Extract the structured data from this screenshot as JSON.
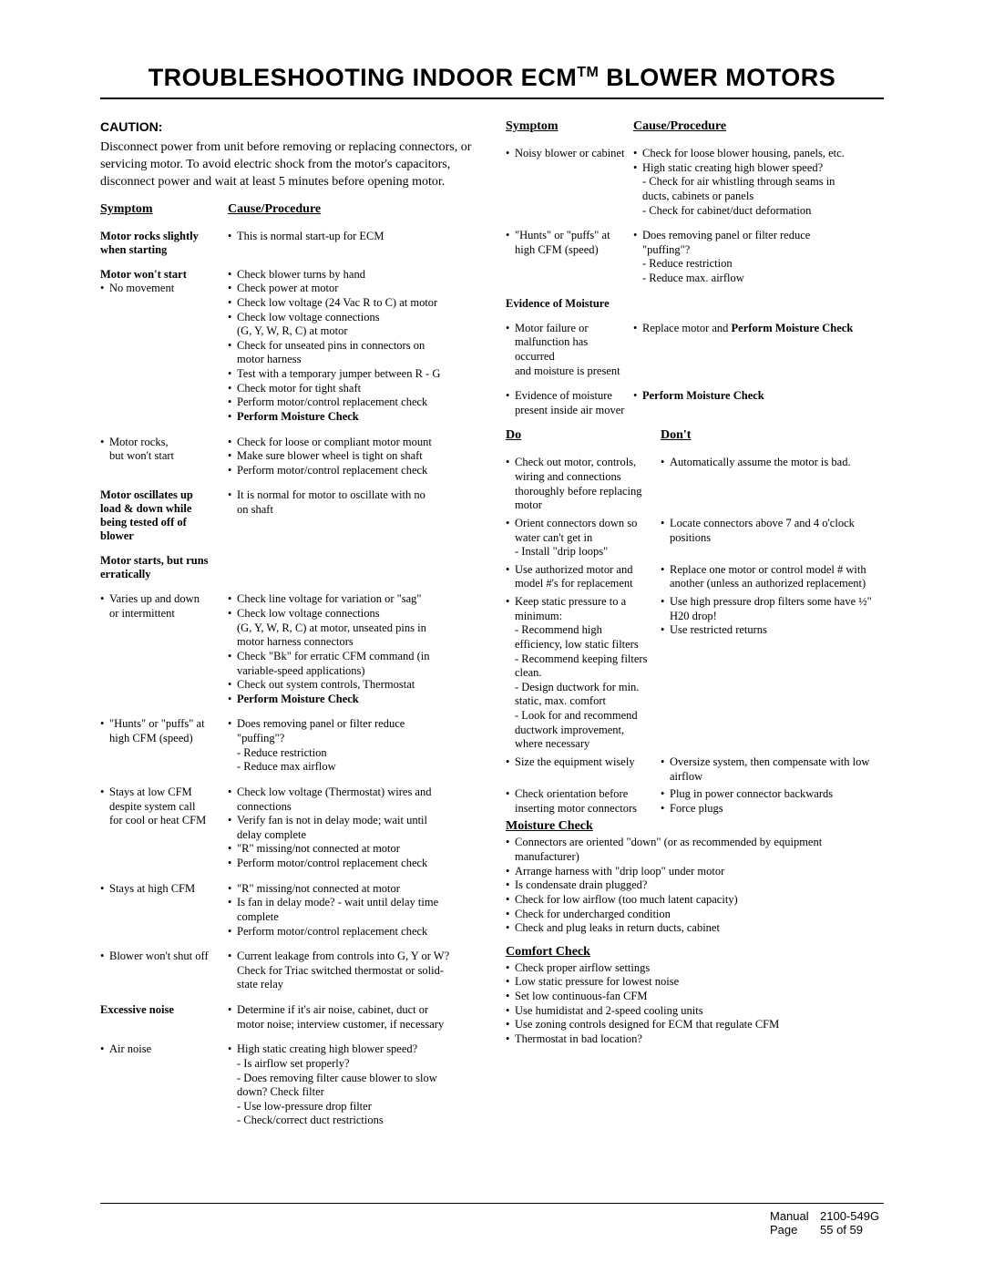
{
  "title_pre": "TROUBLESHOOTING INDOOR ECM",
  "title_sup": "TM",
  "title_post": " BLOWER MOTORS",
  "caution_label": "CAUTION:",
  "caution_body": "Disconnect power from unit before removing or replacing connectors, or servicing motor.  To avoid electric shock from the motor's capacitors, disconnect power and wait at least 5 minutes before opening motor.",
  "hdr_symptom": "Symptom",
  "hdr_cause": "Cause/Procedure",
  "hdr_do": "Do",
  "hdr_dont": "Don't",
  "hdr_moisture": "Moisture Check",
  "hdr_comfort": "Comfort Check",
  "left": [
    {
      "sym_bold": "Motor rocks slightly when starting",
      "proc": [
        "This is normal start-up for ECM"
      ]
    },
    {
      "sym_bold": "Motor won't start",
      "sym_lines": [
        "No movement"
      ],
      "proc": [
        "Check blower turns by hand",
        "Check power at motor",
        "Check low voltage (24 Vac R to C) at motor",
        "Check low voltage connections",
        "_(G, Y, W, R, C) at motor",
        "Check for unseated pins in connectors on",
        "_motor harness",
        "Test with a temporary jumper between R - G",
        "Check motor for tight shaft",
        "Perform motor/control replacement check",
        "**Perform Moisture Check"
      ]
    },
    {
      "sym_lines": [
        "Motor rocks,",
        "_but won't start"
      ],
      "proc": [
        "Check for loose or compliant motor mount",
        "Make sure blower wheel is tight on shaft",
        "Perform motor/control replacement check"
      ]
    },
    {
      "sym_bold": "Motor oscillates up",
      "sym_bold2": "load & down while being tested off of blower",
      "proc": [
        "It is normal for motor to oscillate with no",
        "_on shaft"
      ]
    },
    {
      "sym_bold": "Motor starts, but runs erratically",
      "proc": []
    },
    {
      "sym_lines": [
        "Varies up and down",
        "_or intermittent"
      ],
      "proc": [
        "Check line voltage for variation or \"sag\"",
        "Check low voltage connections",
        "_(G, Y, W, R, C) at motor, unseated pins in",
        "_motor harness connectors",
        "Check \"Bk\" for erratic CFM command (in",
        "_variable-speed applications)",
        "Check out system controls, Thermostat",
        "**Perform Moisture Check"
      ]
    },
    {
      "sym_lines": [
        "\"Hunts\" or \"puffs\" at",
        "_high CFM (speed)"
      ],
      "proc": [
        "Does removing panel or filter reduce",
        "_\"puffing\"?",
        "_- Reduce restriction",
        "_- Reduce max airflow"
      ]
    },
    {
      "sym_lines": [
        "Stays at low CFM",
        "_despite system call",
        "_for cool or heat CFM"
      ],
      "proc": [
        "Check low voltage (Thermostat) wires and",
        "_connections",
        "Verify fan is not in delay mode; wait until",
        "_delay complete",
        "\"R\" missing/not connected at motor",
        "Perform motor/control replacement check"
      ]
    },
    {
      "sym_lines": [
        "Stays at high CFM"
      ],
      "proc": [
        "\"R\" missing/not connected at motor",
        "Is fan in delay mode? - wait until delay time",
        "_complete",
        "Perform motor/control replacement check"
      ]
    },
    {
      "sym_lines": [
        "Blower won't shut off"
      ],
      "proc": [
        "Current leakage from controls into G, Y or W?",
        "_Check for Triac switched thermostat or solid-",
        "_state relay"
      ]
    },
    {
      "sym_bold": "Excessive noise",
      "proc": [
        "Determine if it's air noise, cabinet, duct or",
        "_motor noise; interview customer, if necessary"
      ]
    },
    {
      "sym_lines": [
        "Air noise"
      ],
      "proc": [
        "High static creating high blower speed?",
        "_- Is airflow set properly?",
        "_- Does removing filter cause blower to slow",
        "_  down?  Check filter",
        "_- Use low-pressure drop filter",
        "_- Check/correct duct restrictions"
      ]
    }
  ],
  "right_sp": [
    {
      "sym_lines": [
        "Noisy blower or cabinet"
      ],
      "proc": [
        "Check for loose blower housing, panels, etc.",
        "High static creating high blower speed?",
        "_- Check for air whistling through seams in",
        "_  ducts, cabinets or panels",
        "_- Check for cabinet/duct deformation"
      ]
    },
    {
      "sym_lines": [
        "\"Hunts\" or \"puffs\" at",
        "_high CFM (speed)"
      ],
      "proc": [
        "Does removing panel or filter reduce",
        "_\"puffing\"?",
        "_- Reduce restriction",
        "_- Reduce max. airflow"
      ]
    },
    {
      "sym_bold": "Evidence of Moisture",
      "proc": []
    },
    {
      "sym_lines": [
        "Motor failure or",
        "_malfunction has occurred",
        "_and moisture is present"
      ],
      "proc": [
        "~Replace motor and **Perform Moisture Check"
      ]
    },
    {
      "sym_lines": [
        "Evidence of moisture",
        "_present inside air mover"
      ],
      "proc": [
        "**Perform Moisture Check"
      ]
    }
  ],
  "do_dont": [
    {
      "do": [
        "Check out motor, controls,",
        "_wiring and connections",
        "_thoroughly before replacing",
        "_motor"
      ],
      "dont": [
        "Automatically assume the motor is bad."
      ]
    },
    {
      "do": [
        "Orient connectors down so",
        "_water can't get in",
        "_- Install \"drip loops\""
      ],
      "dont": [
        "Locate connectors above 7 and 4 o'clock",
        "_positions"
      ]
    },
    {
      "do": [
        "Use authorized motor and",
        "_model #'s for replacement"
      ],
      "dont": [
        "Replace one motor or control model # with",
        "_another (unless an authorized replacement)"
      ]
    },
    {
      "do": [
        "Keep static pressure to a",
        "_minimum:",
        "_- Recommend high",
        "_  efficiency, low static filters",
        "_- Recommend keeping filters",
        "_  clean.",
        "_- Design ductwork for min.",
        "_  static, max. comfort",
        "_- Look for and recommend",
        "_  ductwork improvement,",
        "_  where necessary"
      ],
      "dont": [
        "Use high pressure drop filters some have ½\"",
        "_H20 drop!",
        "Use restricted returns"
      ]
    },
    {
      "do": [
        "Size the equipment wisely"
      ],
      "dont": [
        "Oversize system, then compensate with low",
        "_airflow"
      ]
    },
    {
      "do": [
        "Check orientation before",
        "_inserting motor connectors"
      ],
      "dont": [
        "Plug in power connector backwards",
        "Force plugs"
      ]
    }
  ],
  "moisture": [
    "Connectors are oriented \"down\" (or as recommended by equipment",
    "_manufacturer)",
    "Arrange harness with \"drip loop\" under motor",
    "Is condensate drain plugged?",
    "Check for low airflow (too much latent capacity)",
    "Check for undercharged condition",
    "Check and plug leaks in return ducts, cabinet"
  ],
  "comfort": [
    "Check proper airflow settings",
    "Low static pressure for lowest noise",
    "Set low continuous-fan CFM",
    "Use humidistat and 2-speed cooling units",
    "Use zoning controls designed for ECM that regulate CFM",
    "Thermostat in bad location?"
  ],
  "footer": {
    "manual_lbl": "Manual",
    "manual_val": "2100-549G",
    "page_lbl": "Page",
    "page_val": "55 of 59"
  }
}
